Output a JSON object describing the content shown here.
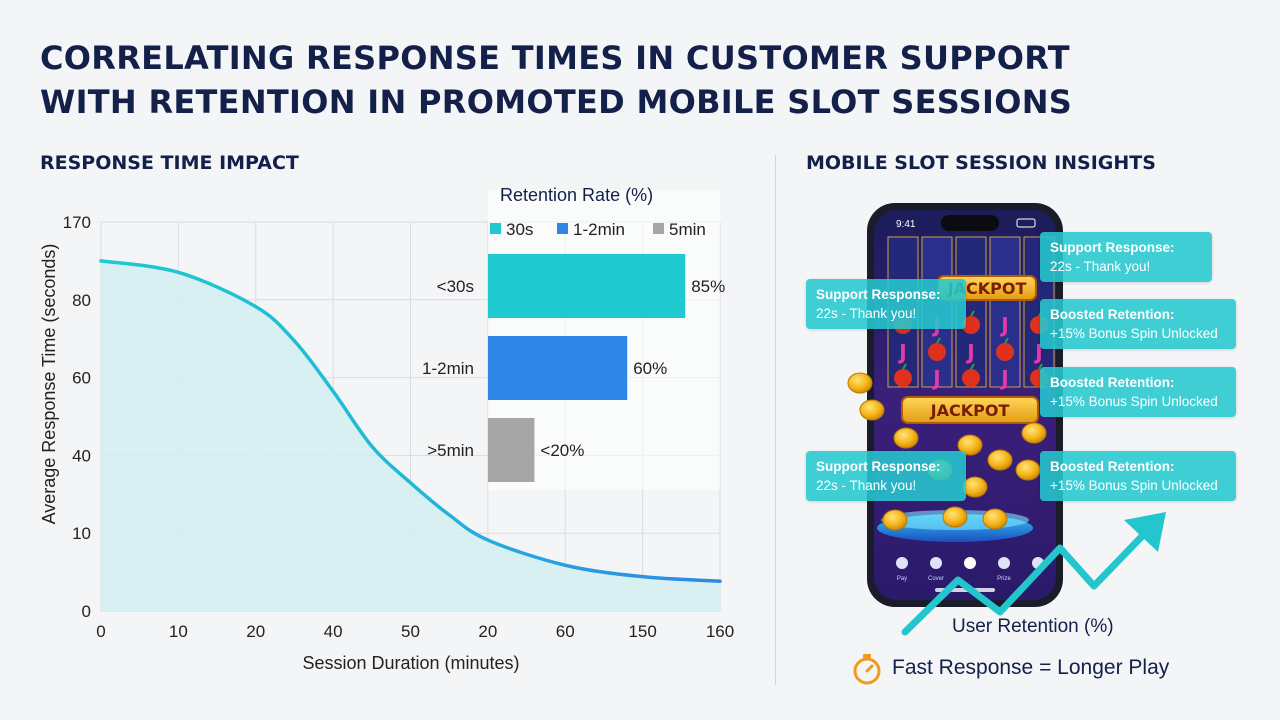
{
  "title_lines": [
    "CORRELATING RESPONSE TIMES IN CUSTOMER SUPPORT",
    "WITH RETENTION IN PROMOTED MOBILE SLOT SESSIONS"
  ],
  "left_heading": "RESPONSE TIME IMPACT",
  "right_heading": "MOBILE SLOT SESSION INSIGHTS",
  "colors": {
    "navy": "#13214a",
    "teal": "#1ec9cf",
    "blue": "#2f86e6",
    "gray": "#a6a6a6",
    "curve_fill": "#d3eef2",
    "orange": "#f39a1e"
  },
  "chart_data": [
    {
      "type": "line",
      "xlabel": "Session Duration (minutes)",
      "ylabel": "Average Response Time (seconds)",
      "x_tick_labels": [
        "0",
        "10",
        "20",
        "40",
        "50",
        "20",
        "60",
        "150",
        "160"
      ],
      "y_tick_labels": [
        "0",
        "10",
        "40",
        "60",
        "80",
        "170"
      ],
      "grid": true,
      "area_fill": true,
      "series": [
        {
          "note_x_index": "position along the x tick sequence (0 = first tick label, 8 = last tick label)",
          "points": [
            {
              "x_index": 0,
              "y": 153
            },
            {
              "x_index": 1,
              "y": 148
            },
            {
              "x_index": 2,
              "y": 133
            },
            {
              "x_index": 2.5,
              "y": 118
            },
            {
              "x_index": 3,
              "y": 96
            },
            {
              "x_index": 3.5,
              "y": 72
            },
            {
              "x_index": 4,
              "y": 56
            },
            {
              "x_index": 4.5,
              "y": 42
            },
            {
              "x_index": 5,
              "y": 31
            },
            {
              "x_index": 6,
              "y": 20
            },
            {
              "x_index": 7,
              "y": 15
            },
            {
              "x_index": 8,
              "y": 13
            }
          ]
        }
      ]
    },
    {
      "type": "bar",
      "orientation": "horizontal",
      "title": "Retention Rate (%)",
      "legend": [
        {
          "label": "30s",
          "color": "#1ec9cf"
        },
        {
          "label": "1-2min",
          "color": "#2f86e6"
        },
        {
          "label": "5min",
          "color": "#a6a6a6"
        }
      ],
      "categories": [
        "<30s",
        "1-2min",
        ">5min"
      ],
      "values": [
        85,
        60,
        20
      ],
      "value_labels": [
        "85%",
        "60%",
        "<20%"
      ],
      "colors": [
        "#1ec9cf",
        "#2f86e6",
        "#a6a6a6"
      ],
      "xlim": [
        0,
        100
      ]
    }
  ],
  "callouts": [
    {
      "title": "Support Response:",
      "text": "22s - Thank you!"
    },
    {
      "title": "Support Response:",
      "text": "22s - Thank you!"
    },
    {
      "title": "Support Response:",
      "text": "22s - Thank you!"
    },
    {
      "title": "Boosted Retention:",
      "text": "+15% Bonus Spin Unlocked"
    },
    {
      "title": "Boosted Retention:",
      "text": "+15% Bonus Spin Unlocked"
    },
    {
      "title": "Boosted Retention:",
      "text": "+15% Bonus Spin Unlocked"
    }
  ],
  "phone": {
    "time": "9:41",
    "jackpot_label": "JACKPOT",
    "nav": [
      "Pay",
      "Cover",
      "",
      "Prize",
      ""
    ]
  },
  "retention_label": "User Retention (%)",
  "tagline": "Fast Response = Longer Play"
}
